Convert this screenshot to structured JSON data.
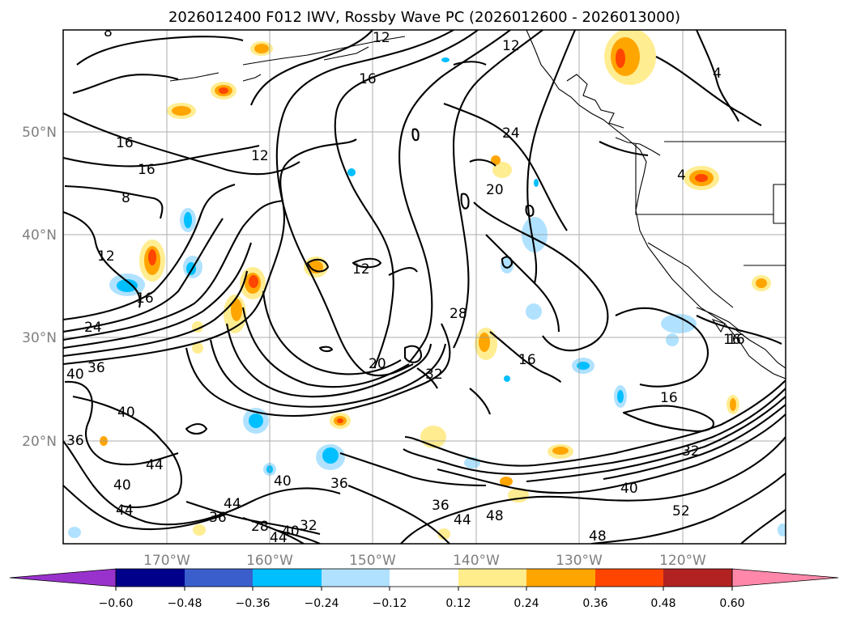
{
  "chart_data": {
    "type": "contour-map",
    "title": "2026012400 F012 IWV, Rossby Wave PC (2026012600 - 2026013000)",
    "lon_ticks": [
      "170°W",
      "160°W",
      "150°W",
      "140°W",
      "130°W",
      "120°W"
    ],
    "lat_ticks": [
      "50°N",
      "40°N",
      "30°N",
      "20°N"
    ],
    "lon_values": [
      -170,
      -160,
      -150,
      -140,
      -130,
      -120
    ],
    "lat_values": [
      50,
      40,
      30,
      20
    ],
    "lon_range": [
      -180,
      -110
    ],
    "lat_range": [
      10,
      60
    ],
    "grid": true,
    "iwv_contour_labels": [
      "8",
      "12",
      "12",
      "16",
      "16",
      "12",
      "12",
      "16",
      "8",
      "12",
      "16",
      "24",
      "20",
      "24",
      "36",
      "40",
      "40",
      "36",
      "44",
      "40",
      "40",
      "44",
      "36",
      "44",
      "28",
      "44",
      "40",
      "32",
      "36",
      "20",
      "28",
      "32",
      "16",
      "16",
      "16",
      "32",
      "40",
      "36",
      "44",
      "48",
      "52",
      "48",
      "16",
      "4",
      "4"
    ],
    "colorbar": {
      "ticks": [
        "−0.60",
        "−0.48",
        "−0.36",
        "−0.24",
        "−0.12",
        "0.12",
        "0.24",
        "0.36",
        "0.48",
        "0.60"
      ],
      "tick_values": [
        -0.6,
        -0.48,
        -0.36,
        -0.24,
        -0.12,
        0.12,
        0.24,
        0.36,
        0.48,
        0.6
      ],
      "under_color": "#9932CC",
      "over_color": "#FF88AA",
      "colors": [
        "#00008B",
        "#3A5FCD",
        "#00BFFF",
        "#B0E2FF",
        "#FFFFFF",
        "#FFEC8B",
        "#FFA500",
        "#FF4500",
        "#B22222"
      ],
      "extend": "both"
    },
    "anomaly_colors": {
      "positive_light": "#FFEC8B",
      "positive_mid": "#FFA500",
      "positive_strong": "#FF4500",
      "negative_light": "#B0E2FF",
      "negative_mid": "#00BFFF"
    }
  }
}
